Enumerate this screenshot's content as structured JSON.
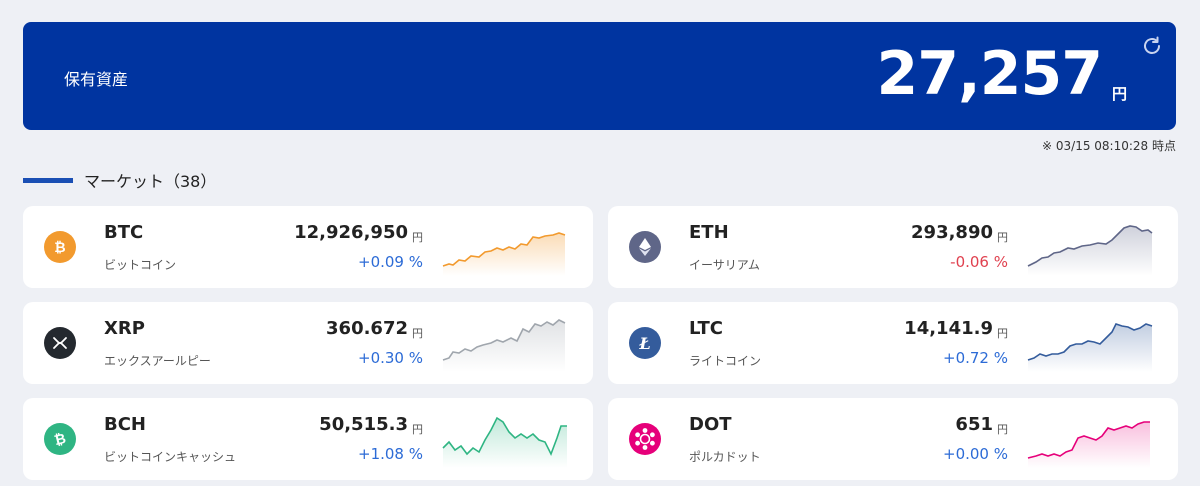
{
  "asset": {
    "label": "保有資産",
    "value": "27,257",
    "unit": "円",
    "timestamp": "※ 03/15 08:10:28 時点"
  },
  "market": {
    "title": "マーケット（38）"
  },
  "colors": {
    "banner": "#0034a0",
    "up": "#2c6bd6",
    "down": "#e0414f"
  },
  "coins": [
    {
      "symbol": "BTC",
      "name": "ビットコイン",
      "price": "12,926,950",
      "unit": "円",
      "change": "+0.09 %",
      "dir": "up",
      "icon": "bitcoin-icon"
    },
    {
      "symbol": "ETH",
      "name": "イーサリアム",
      "price": "293,890",
      "unit": "円",
      "change": "-0.06 %",
      "dir": "down",
      "icon": "ethereum-icon"
    },
    {
      "symbol": "XRP",
      "name": "エックスアールピー",
      "price": "360.672",
      "unit": "円",
      "change": "+0.30 %",
      "dir": "up",
      "icon": "xrp-icon"
    },
    {
      "symbol": "LTC",
      "name": "ライトコイン",
      "price": "14,141.9",
      "unit": "円",
      "change": "+0.72 %",
      "dir": "up",
      "icon": "litecoin-icon"
    },
    {
      "symbol": "BCH",
      "name": "ビットコインキャッシュ",
      "price": "50,515.3",
      "unit": "円",
      "change": "+1.08 %",
      "dir": "up",
      "icon": "bitcoin-cash-icon"
    },
    {
      "symbol": "DOT",
      "name": "ポルカドット",
      "price": "651",
      "unit": "円",
      "change": "+0.00 %",
      "dir": "up",
      "icon": "polkadot-icon"
    }
  ]
}
